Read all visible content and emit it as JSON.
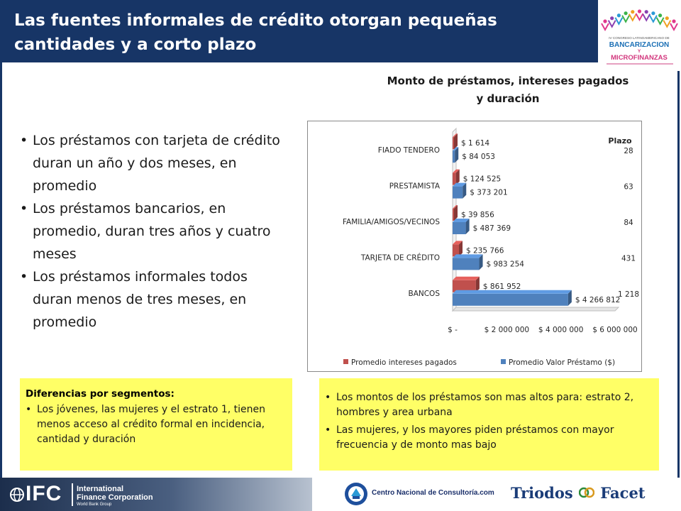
{
  "header": {
    "title": "Las fuentes informales de crédito otorgan pequeñas cantidades y a corto plazo"
  },
  "logo": {
    "lines": [
      "IV CONGRESO LATINOAMERICANO DE",
      "BANCARIZACION",
      "Y",
      "MICROFINANZAS"
    ],
    "colors": [
      "#e0388c",
      "#8a3fb0",
      "#2a9ad6",
      "#3bb34a",
      "#f0a020"
    ]
  },
  "bullets": [
    "Los préstamos con tarjeta de crédito duran un año y dos meses, en promedio",
    "Los préstamos bancarios, en promedio, duran tres años y cuatro meses",
    "Los préstamos informales todos duran menos de tres meses, en promedio"
  ],
  "chart_title": "Monto de préstamos, intereses pagados y duración",
  "chart_data": {
    "type": "bar",
    "orientation": "horizontal",
    "categories": [
      "FIADO TENDERO",
      "PRESTAMISTA",
      "FAMILIA/AMIGOS/VECINOS",
      "TARJETA DE CRÉDITO",
      "BANCOS"
    ],
    "series": [
      {
        "name": "Promedio intereses pagados",
        "color": "#c0504d",
        "values": [
          1614,
          124525,
          39856,
          235766,
          861952
        ],
        "labels": [
          "$ 1 614",
          "$ 124 525",
          "$ 39 856",
          "$ 235 766",
          "$ 861 952"
        ]
      },
      {
        "name": "Promedio Valor Préstamo ($)",
        "color": "#4f81bd",
        "values": [
          84053,
          373201,
          487369,
          983254,
          4266812
        ],
        "labels": [
          "$ 84 053",
          "$ 373 201",
          "$ 487 369",
          "$ 983 254",
          "$ 4 266 812"
        ]
      }
    ],
    "xlim": [
      0,
      6000000
    ],
    "xticks": [
      0,
      2000000,
      4000000,
      6000000
    ],
    "xtick_labels": [
      "$ -",
      "$ 2 000 000",
      "$ 4 000 000",
      "$ 6 000 000"
    ],
    "plazo_title": "Plazo",
    "plazo": [
      "28",
      "63",
      "84",
      "431",
      "1 218"
    ],
    "legend_position": "bottom",
    "grid": false
  },
  "left_box": {
    "title": "Diferencias por segmentos:",
    "items": [
      "Los jóvenes, las mujeres y el estrato 1, tienen menos acceso al crédito formal en incidencia, cantidad y duración"
    ]
  },
  "right_box": {
    "items": [
      "Los montos de los préstamos son mas altos para: estrato 2, hombres y area urbana",
      "Las mujeres, y los mayores piden préstamos con mayor frecuencia y de monto mas bajo"
    ]
  },
  "footer": {
    "ifc_logo": "IFC",
    "ifc_name_line1": "International",
    "ifc_name_line2": "Finance Corporation",
    "ifc_sub": "World Bank Group",
    "cnc_name": "Centro Nacional de Consultoría.com",
    "triodos_left": "Triodos",
    "triodos_right": "Facet"
  }
}
